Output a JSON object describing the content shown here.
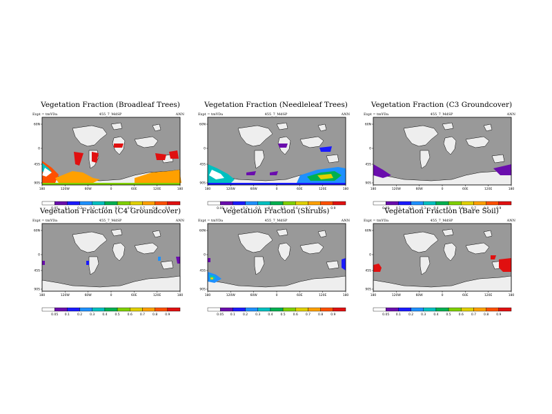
{
  "experiment_label": "Expt = tmYDa",
  "run_id": "455_7_MdSP",
  "season": "ANN",
  "lat_ticks": [
    "60N",
    "0",
    "45S",
    "90S"
  ],
  "lon_ticks": [
    "180",
    "120W",
    "60W",
    "0",
    "60E",
    "120E",
    "180"
  ],
  "colorbar_levels": [
    "0.05",
    "0.1",
    "0.2",
    "0.3",
    "0.4",
    "0.5",
    "0.6",
    "0.7",
    "0.8",
    "0.9"
  ],
  "colorbar_colors": [
    "#ffffff",
    "#6a0dad",
    "#1a1aff",
    "#1e90ff",
    "#00c0c0",
    "#00b050",
    "#7fd000",
    "#e0d000",
    "#ffa000",
    "#ff5000",
    "#e01010"
  ],
  "colors": {
    "ocean": "#999999",
    "land_bare": "#eeeeee",
    "frame": "#000000"
  },
  "panels": [
    {
      "title": "Vegetation Fraction (Broadleaf Trees)",
      "legend_labels": [
        "0.05",
        "0.1",
        "0.2",
        "0.3",
        "0.4",
        "0.5",
        "0.6",
        "0.7",
        "0.8",
        "0.9"
      ]
    },
    {
      "title": "Vegetation Fraction (Needleleaf Trees)",
      "legend_labels": [
        "0.05",
        "0.1",
        "0.2",
        "0.3",
        "0.4",
        "0.5",
        "0.6",
        "0.7",
        "0.8",
        "0.9"
      ]
    },
    {
      "title": "Vegetation Fraction (C3 Groundcover)",
      "legend_labels": [
        "0.05",
        "0.1",
        "0.2",
        "0.3",
        "0.4",
        "0.5",
        "0.6",
        "0.7",
        "0.8",
        "0.9"
      ]
    },
    {
      "title": "Vegetation Fraction (C4 Groundcover)",
      "legend_labels": [
        "0.05",
        "0.1",
        "0.2",
        "0.3",
        "0.4",
        "0.5",
        "0.6",
        "0.7",
        "0.8",
        "0.9"
      ]
    },
    {
      "title": "Vegetation Fraction (Shrubs)",
      "legend_labels": [
        "0.05",
        "0.1",
        "0.2",
        "0.3",
        "0.4",
        "0.5",
        "0.6",
        "0.7",
        "0.8",
        "0.9"
      ]
    },
    {
      "title": "Vegetation Fraction (Bare Soil)",
      "legend_labels": [
        "0.05",
        "0.1",
        "0.2",
        "0.3",
        "0.4",
        "0.5",
        "0.6",
        "0.7",
        "0.8",
        "0.9"
      ]
    }
  ]
}
